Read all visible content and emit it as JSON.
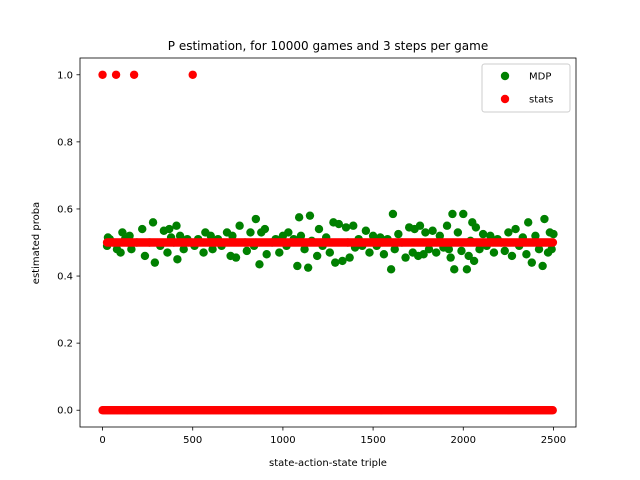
{
  "chart_data": {
    "type": "scatter",
    "title": "P estimation, for 10000 games and 3 steps per game",
    "xlabel": "state-action-state triple",
    "ylabel": "estimated proba",
    "xlim": [
      -125,
      2625
    ],
    "ylim": [
      -0.05,
      1.05
    ],
    "xticks": [
      0,
      500,
      1000,
      1500,
      2000,
      2500
    ],
    "xtick_labels": [
      "0",
      "500",
      "1000",
      "1500",
      "2000",
      "2500"
    ],
    "yticks": [
      0.0,
      0.2,
      0.4,
      0.6,
      0.8,
      1.0
    ],
    "ytick_labels": [
      "0.0",
      "0.2",
      "0.4",
      "0.6",
      "0.8",
      "1.0"
    ],
    "grid": false,
    "legend_position": "top-right",
    "series": [
      {
        "name": "MDP",
        "color": "#008000",
        "points": [
          [
            25,
            0.49
          ],
          [
            30,
            0.515
          ],
          [
            40,
            0.51
          ],
          [
            60,
            0.5
          ],
          [
            80,
            0.48
          ],
          [
            100,
            0.47
          ],
          [
            110,
            0.53
          ],
          [
            125,
            0.51
          ],
          [
            150,
            0.52
          ],
          [
            160,
            0.48
          ],
          [
            190,
            0.5
          ],
          [
            220,
            0.54
          ],
          [
            235,
            0.46
          ],
          [
            260,
            0.5
          ],
          [
            280,
            0.56
          ],
          [
            290,
            0.44
          ],
          [
            320,
            0.49
          ],
          [
            340,
            0.535
          ],
          [
            360,
            0.47
          ],
          [
            370,
            0.54
          ],
          [
            380,
            0.515
          ],
          [
            395,
            0.5
          ],
          [
            410,
            0.55
          ],
          [
            415,
            0.45
          ],
          [
            430,
            0.52
          ],
          [
            450,
            0.48
          ],
          [
            470,
            0.51
          ],
          [
            490,
            0.5
          ],
          [
            510,
            0.49
          ],
          [
            530,
            0.51
          ],
          [
            560,
            0.47
          ],
          [
            570,
            0.53
          ],
          [
            600,
            0.52
          ],
          [
            610,
            0.48
          ],
          [
            640,
            0.51
          ],
          [
            660,
            0.49
          ],
          [
            690,
            0.53
          ],
          [
            710,
            0.46
          ],
          [
            720,
            0.52
          ],
          [
            740,
            0.455
          ],
          [
            760,
            0.55
          ],
          [
            790,
            0.5
          ],
          [
            800,
            0.475
          ],
          [
            820,
            0.53
          ],
          [
            840,
            0.49
          ],
          [
            850,
            0.57
          ],
          [
            870,
            0.435
          ],
          [
            880,
            0.53
          ],
          [
            900,
            0.54
          ],
          [
            910,
            0.465
          ],
          [
            940,
            0.5
          ],
          [
            960,
            0.51
          ],
          [
            980,
            0.47
          ],
          [
            1000,
            0.52
          ],
          [
            1020,
            0.49
          ],
          [
            1030,
            0.53
          ],
          [
            1060,
            0.51
          ],
          [
            1080,
            0.43
          ],
          [
            1090,
            0.575
          ],
          [
            1100,
            0.52
          ],
          [
            1120,
            0.48
          ],
          [
            1140,
            0.425
          ],
          [
            1150,
            0.58
          ],
          [
            1160,
            0.505
          ],
          [
            1190,
            0.46
          ],
          [
            1200,
            0.54
          ],
          [
            1220,
            0.49
          ],
          [
            1240,
            0.515
          ],
          [
            1260,
            0.47
          ],
          [
            1280,
            0.56
          ],
          [
            1290,
            0.44
          ],
          [
            1310,
            0.555
          ],
          [
            1330,
            0.445
          ],
          [
            1350,
            0.545
          ],
          [
            1360,
            0.5
          ],
          [
            1370,
            0.455
          ],
          [
            1390,
            0.55
          ],
          [
            1400,
            0.485
          ],
          [
            1420,
            0.51
          ],
          [
            1440,
            0.49
          ],
          [
            1460,
            0.535
          ],
          [
            1480,
            0.47
          ],
          [
            1500,
            0.52
          ],
          [
            1520,
            0.49
          ],
          [
            1540,
            0.515
          ],
          [
            1560,
            0.465
          ],
          [
            1580,
            0.51
          ],
          [
            1600,
            0.42
          ],
          [
            1610,
            0.585
          ],
          [
            1620,
            0.48
          ],
          [
            1640,
            0.525
          ],
          [
            1660,
            0.5
          ],
          [
            1680,
            0.455
          ],
          [
            1700,
            0.545
          ],
          [
            1720,
            0.47
          ],
          [
            1730,
            0.54
          ],
          [
            1750,
            0.46
          ],
          [
            1760,
            0.55
          ],
          [
            1780,
            0.465
          ],
          [
            1790,
            0.53
          ],
          [
            1810,
            0.48
          ],
          [
            1830,
            0.535
          ],
          [
            1850,
            0.47
          ],
          [
            1870,
            0.52
          ],
          [
            1890,
            0.485
          ],
          [
            1910,
            0.55
          ],
          [
            1920,
            0.48
          ],
          [
            1930,
            0.455
          ],
          [
            1940,
            0.585
          ],
          [
            1950,
            0.42
          ],
          [
            1970,
            0.53
          ],
          [
            1990,
            0.475
          ],
          [
            2000,
            0.585
          ],
          [
            2020,
            0.42
          ],
          [
            2030,
            0.46
          ],
          [
            2040,
            0.505
          ],
          [
            2050,
            0.56
          ],
          [
            2060,
            0.445
          ],
          [
            2070,
            0.545
          ],
          [
            2090,
            0.48
          ],
          [
            2110,
            0.525
          ],
          [
            2130,
            0.49
          ],
          [
            2150,
            0.52
          ],
          [
            2170,
            0.47
          ],
          [
            2190,
            0.51
          ],
          [
            2210,
            0.5
          ],
          [
            2230,
            0.475
          ],
          [
            2250,
            0.53
          ],
          [
            2270,
            0.46
          ],
          [
            2290,
            0.54
          ],
          [
            2310,
            0.49
          ],
          [
            2330,
            0.515
          ],
          [
            2350,
            0.465
          ],
          [
            2360,
            0.56
          ],
          [
            2380,
            0.44
          ],
          [
            2400,
            0.52
          ],
          [
            2420,
            0.48
          ],
          [
            2440,
            0.43
          ],
          [
            2450,
            0.57
          ],
          [
            2470,
            0.47
          ],
          [
            2480,
            0.53
          ],
          [
            2490,
            0.48
          ],
          [
            2500,
            0.525
          ]
        ]
      },
      {
        "name": "stats",
        "color": "#ff0000",
        "points_one": [
          [
            0,
            1.0
          ],
          [
            75,
            1.0
          ],
          [
            175,
            1.0
          ],
          [
            500,
            1.0
          ]
        ],
        "points_half_range": [
          25,
          2500
        ],
        "points_zero_range": [
          0,
          2500
        ],
        "values_note": "red points lie on y=0.5 and y=0 across the range"
      }
    ]
  }
}
